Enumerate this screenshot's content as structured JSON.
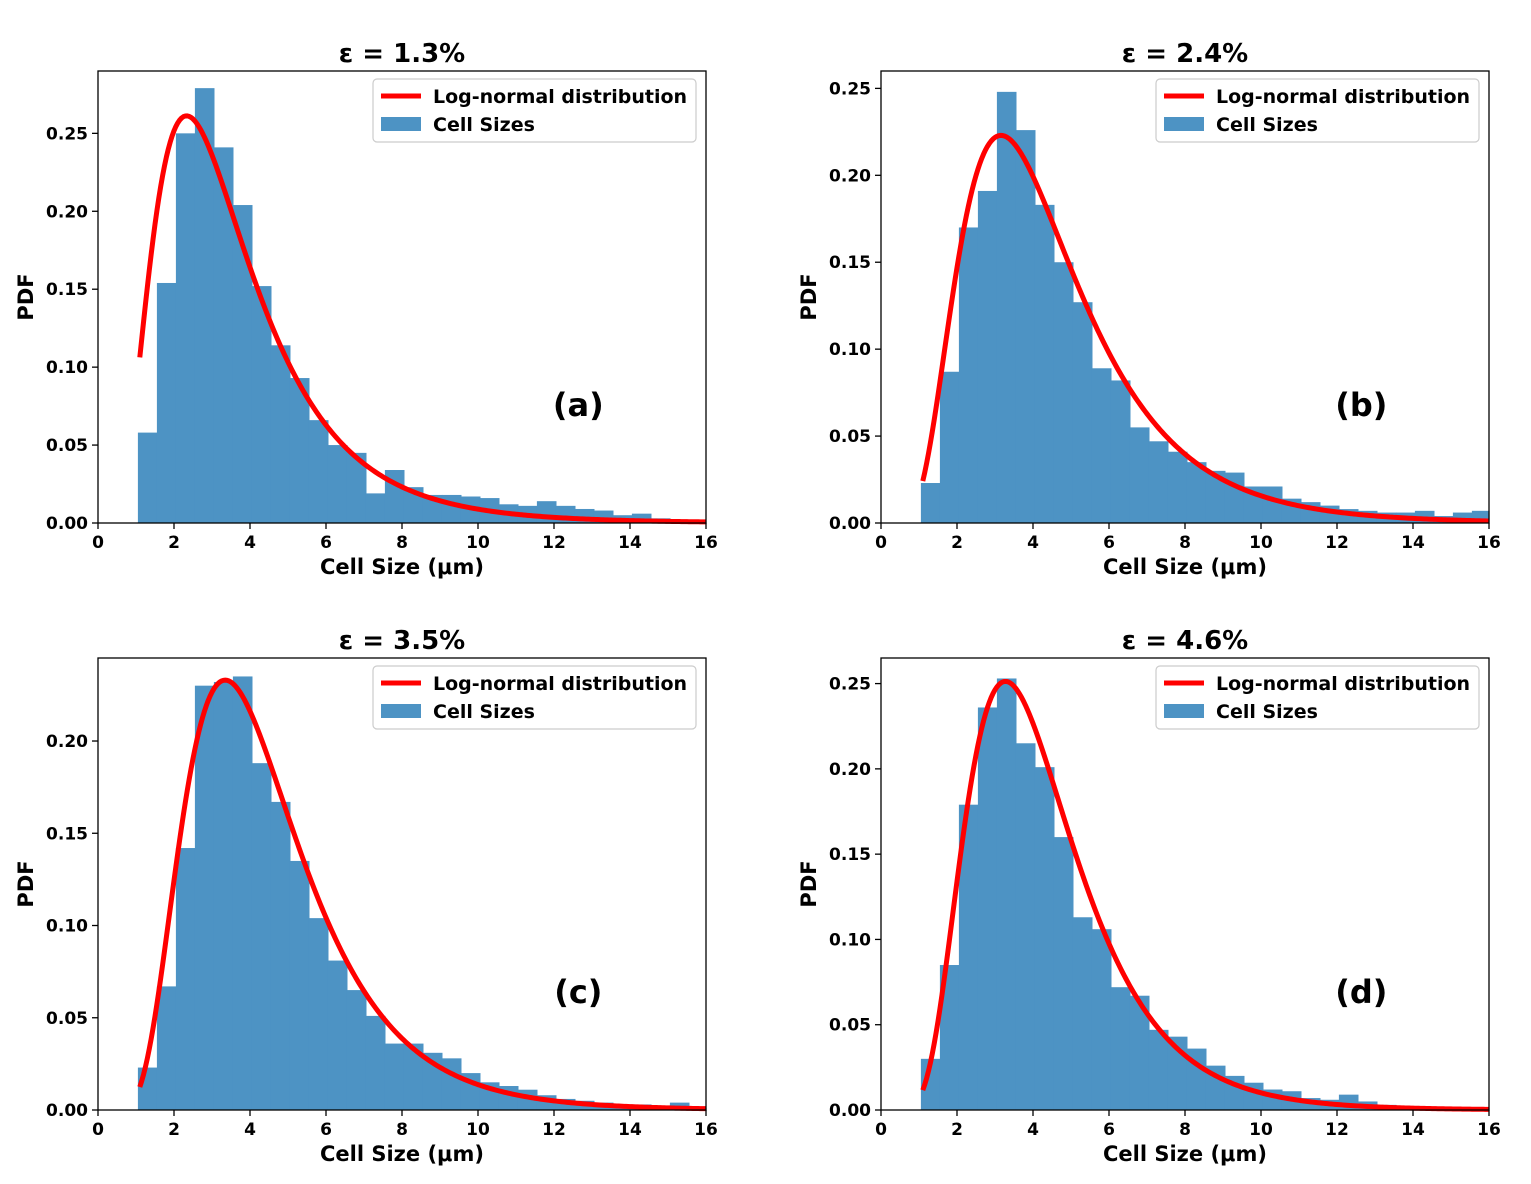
{
  "figure": {
    "background": "#ffffff"
  },
  "chart_data": [
    {
      "type": "bar",
      "panel": "(a)",
      "title": "ε = 1.3%",
      "xlabel": "Cell Size (μm)",
      "ylabel": "PDF",
      "xlim": [
        0,
        16
      ],
      "ylim": [
        0,
        0.29
      ],
      "xticks": [
        "0",
        "2",
        "4",
        "6",
        "8",
        "10",
        "12",
        "14",
        "16"
      ],
      "yticks": [
        "0.00",
        "0.05",
        "0.10",
        "0.15",
        "0.20",
        "0.25"
      ],
      "legend": {
        "position": "top-right",
        "line_label": "Log-normal distribution",
        "bar_label": "Cell Sizes"
      },
      "bins": {
        "start": 1.05,
        "width": 0.5
      },
      "values": [
        0.058,
        0.154,
        0.25,
        0.279,
        0.241,
        0.204,
        0.152,
        0.114,
        0.093,
        0.066,
        0.05,
        0.045,
        0.019,
        0.034,
        0.023,
        0.018,
        0.018,
        0.017,
        0.016,
        0.012,
        0.011,
        0.014,
        0.011,
        0.009,
        0.008,
        0.005,
        0.006,
        0.003,
        0.002,
        0.001
      ],
      "fit": {
        "mu": 1.16,
        "sigma": 0.56,
        "label": "Log-normal distribution"
      },
      "colors": {
        "bar": "#4d93c4",
        "line": "#ff0000"
      }
    },
    {
      "type": "bar",
      "panel": "(b)",
      "title": "ε = 2.4%",
      "xlabel": "Cell Size (μm)",
      "ylabel": "PDF",
      "xlim": [
        0,
        16
      ],
      "ylim": [
        0,
        0.26
      ],
      "xticks": [
        "0",
        "2",
        "4",
        "6",
        "8",
        "10",
        "12",
        "14",
        "16"
      ],
      "yticks": [
        "0.00",
        "0.05",
        "0.10",
        "0.15",
        "0.20",
        "0.25"
      ],
      "legend": {
        "position": "top-right",
        "line_label": "Log-normal distribution",
        "bar_label": "Cell Sizes"
      },
      "bins": {
        "start": 1.05,
        "width": 0.5
      },
      "values": [
        0.023,
        0.087,
        0.17,
        0.191,
        0.248,
        0.226,
        0.183,
        0.15,
        0.127,
        0.089,
        0.082,
        0.055,
        0.047,
        0.041,
        0.035,
        0.03,
        0.029,
        0.021,
        0.021,
        0.014,
        0.012,
        0.01,
        0.008,
        0.007,
        0.006,
        0.006,
        0.007,
        0.004,
        0.006,
        0.007
      ],
      "fit": {
        "mu": 1.4,
        "sigma": 0.5,
        "label": "Log-normal distribution"
      },
      "colors": {
        "bar": "#4d93c4",
        "line": "#ff0000"
      }
    },
    {
      "type": "bar",
      "panel": "(c)",
      "title": "ε = 3.5%",
      "xlabel": "Cell Size (μm)",
      "ylabel": "PDF",
      "xlim": [
        0,
        16
      ],
      "ylim": [
        0,
        0.245
      ],
      "xticks": [
        "0",
        "2",
        "4",
        "6",
        "8",
        "10",
        "12",
        "14",
        "16"
      ],
      "yticks": [
        "0.00",
        "0.05",
        "0.10",
        "0.15",
        "0.20"
      ],
      "legend": {
        "position": "top-right",
        "line_label": "Log-normal distribution",
        "bar_label": "Cell Sizes"
      },
      "bins": {
        "start": 1.05,
        "width": 0.5
      },
      "values": [
        0.023,
        0.067,
        0.142,
        0.23,
        0.232,
        0.235,
        0.188,
        0.167,
        0.135,
        0.104,
        0.081,
        0.065,
        0.051,
        0.036,
        0.036,
        0.031,
        0.028,
        0.02,
        0.015,
        0.013,
        0.011,
        0.008,
        0.006,
        0.005,
        0.004,
        0.003,
        0.003,
        0.002,
        0.004,
        0.001
      ],
      "fit": {
        "mu": 1.42,
        "sigma": 0.46,
        "label": "Log-normal distribution"
      },
      "colors": {
        "bar": "#4d93c4",
        "line": "#ff0000"
      }
    },
    {
      "type": "bar",
      "panel": "(d)",
      "title": "ε = 4.6%",
      "xlabel": "Cell Size (μm)",
      "ylabel": "PDF",
      "xlim": [
        0,
        16
      ],
      "ylim": [
        0,
        0.265
      ],
      "xticks": [
        "0",
        "2",
        "4",
        "6",
        "8",
        "10",
        "12",
        "14",
        "16"
      ],
      "yticks": [
        "0.00",
        "0.05",
        "0.10",
        "0.15",
        "0.20",
        "0.25"
      ],
      "legend": {
        "position": "top-right",
        "line_label": "Log-normal distribution",
        "bar_label": "Cell Sizes"
      },
      "bins": {
        "start": 1.05,
        "width": 0.5
      },
      "values": [
        0.03,
        0.085,
        0.179,
        0.236,
        0.253,
        0.215,
        0.201,
        0.16,
        0.113,
        0.106,
        0.072,
        0.067,
        0.047,
        0.043,
        0.036,
        0.026,
        0.02,
        0.016,
        0.012,
        0.011,
        0.007,
        0.006,
        0.009,
        0.005,
        0.003,
        0.002,
        0.002,
        0.001,
        0.001,
        0.001
      ],
      "fit": {
        "mu": 1.38,
        "sigma": 0.44,
        "label": "Log-normal distribution"
      },
      "colors": {
        "bar": "#4d93c4",
        "line": "#ff0000"
      }
    }
  ]
}
